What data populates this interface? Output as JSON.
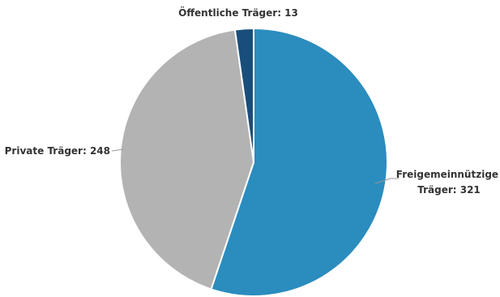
{
  "chart_data": {
    "type": "pie",
    "categories": [
      "Freigemeinnützige Träger",
      "Private Träger",
      "Öffentliche Träger"
    ],
    "values": [
      321,
      248,
      13
    ],
    "colors": [
      "#2b8cbe",
      "#b3b3b3",
      "#1a4e7a"
    ],
    "labels": [
      [
        "Freigemeinnützige",
        "Träger: 321"
      ],
      [
        "Private Träger: 248"
      ],
      [
        "Öffentliche Träger: 13"
      ]
    ],
    "start_angle_deg": 0,
    "direction": "clockwise",
    "title": "",
    "legend": "none"
  }
}
